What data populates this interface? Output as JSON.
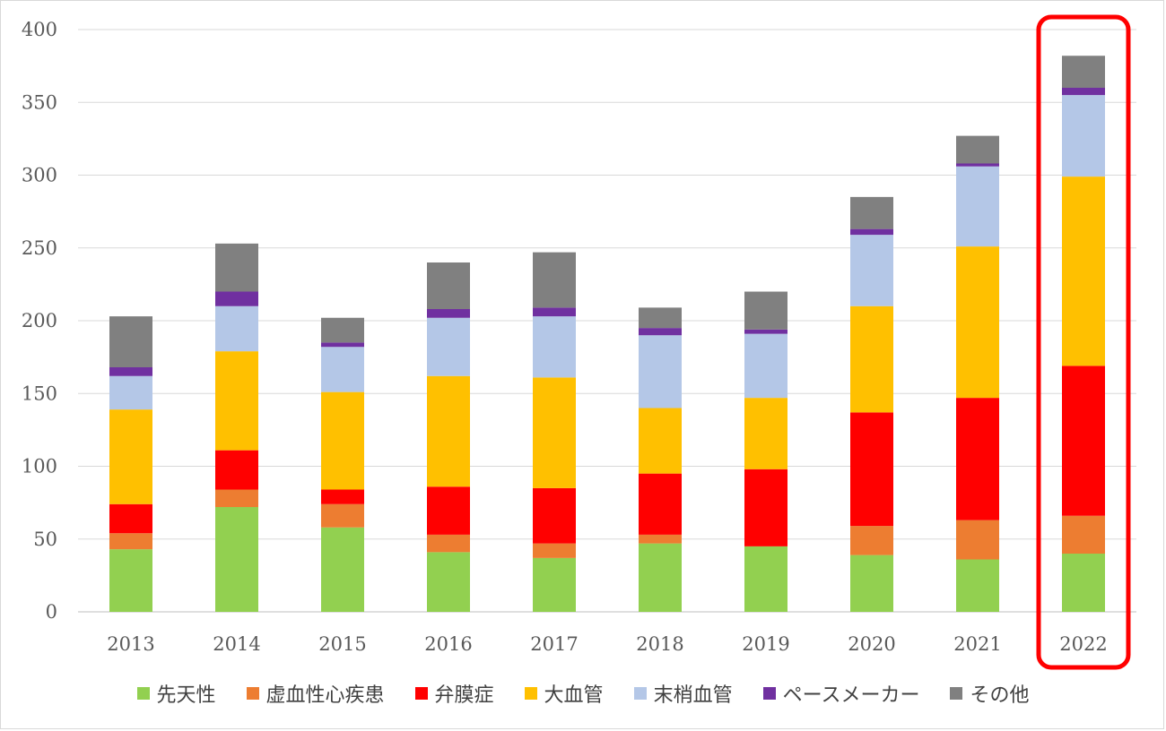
{
  "chart_data": {
    "type": "bar",
    "stacked": true,
    "categories": [
      "2013",
      "2014",
      "2015",
      "2016",
      "2017",
      "2018",
      "2019",
      "2020",
      "2021",
      "2022"
    ],
    "ylim": [
      0,
      400
    ],
    "yticks": [
      "0",
      "50",
      "100",
      "150",
      "200",
      "250",
      "300",
      "350",
      "400"
    ],
    "grid": true,
    "legend_position": "bottom",
    "highlight": {
      "category": "2022",
      "color": "#ff0000"
    },
    "series": [
      {
        "name": "先天性",
        "color": "#92d050",
        "values": [
          43,
          72,
          58,
          41,
          37,
          47,
          45,
          39,
          36,
          40
        ]
      },
      {
        "name": "虚血性心疾患",
        "color": "#ed7d31",
        "values": [
          11,
          12,
          16,
          12,
          10,
          6,
          0,
          20,
          27,
          26
        ]
      },
      {
        "name": "弁膜症",
        "color": "#ff0000",
        "values": [
          20,
          27,
          10,
          33,
          38,
          42,
          53,
          78,
          84,
          103
        ]
      },
      {
        "name": "大血管",
        "color": "#ffc000",
        "values": [
          65,
          68,
          67,
          76,
          76,
          45,
          49,
          73,
          104,
          130
        ]
      },
      {
        "name": "末梢血管",
        "color": "#b4c7e7",
        "values": [
          23,
          31,
          31,
          40,
          42,
          50,
          44,
          49,
          55,
          56
        ]
      },
      {
        "name": "ペースメーカー",
        "color": "#7030a0",
        "values": [
          6,
          10,
          3,
          6,
          6,
          5,
          3,
          4,
          2,
          5
        ]
      },
      {
        "name": "その他",
        "color": "#808080",
        "values": [
          35,
          33,
          17,
          32,
          38,
          14,
          26,
          22,
          19,
          22
        ]
      }
    ]
  }
}
